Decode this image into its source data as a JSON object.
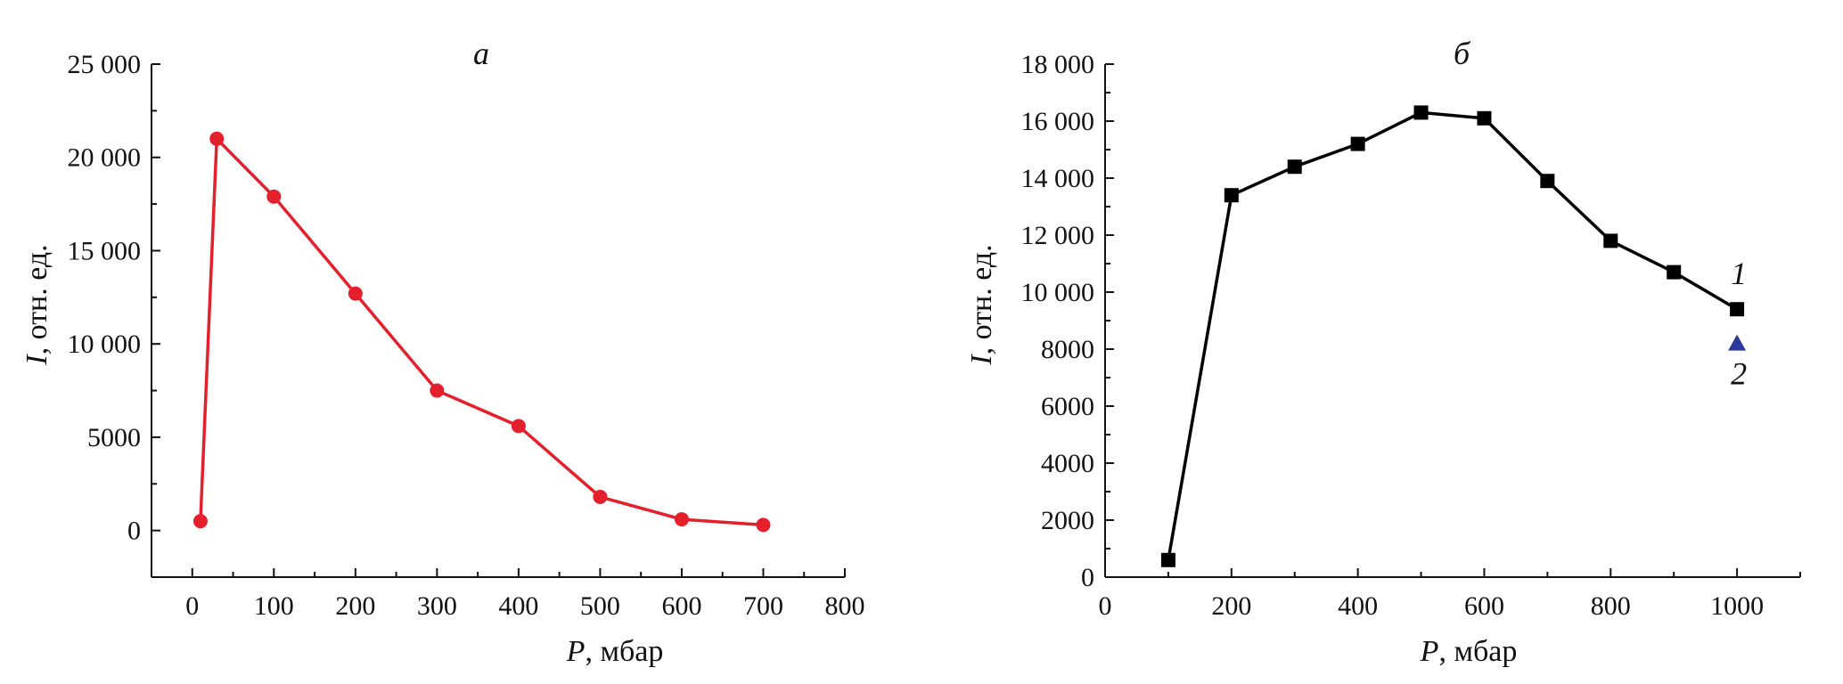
{
  "chart_data": [
    {
      "type": "line",
      "panel_label": "а",
      "xlabel_symbol": "P",
      "xlabel_unit": ", мбар",
      "ylabel_symbol": "I",
      "ylabel_unit": ", отн. ед.",
      "xlim": [
        -50,
        800
      ],
      "ylim": [
        -2500,
        25000
      ],
      "xticks": [
        0,
        100,
        200,
        300,
        400,
        500,
        600,
        700,
        800
      ],
      "xtick_labels": [
        "0",
        "100",
        "200",
        "300",
        "400",
        "500",
        "600",
        "700",
        "800"
      ],
      "yticks": [
        0,
        5000,
        10000,
        15000,
        20000,
        25000
      ],
      "ytick_labels": [
        "0",
        "5000",
        "10 000",
        "15 000",
        "20 000",
        "25 000"
      ],
      "grid": false,
      "series": [
        {
          "color": "#e3202b",
          "marker": "circle",
          "x": [
            10,
            30,
            100,
            200,
            300,
            400,
            500,
            600,
            700
          ],
          "y": [
            500,
            21000,
            17900,
            12700,
            7500,
            5600,
            1800,
            600,
            300
          ]
        }
      ]
    },
    {
      "type": "line",
      "panel_label": "б",
      "xlabel_symbol": "P",
      "xlabel_unit": ", мбар",
      "ylabel_symbol": "I",
      "ylabel_unit": ", отн. ед.",
      "xlim": [
        0,
        1100
      ],
      "ylim": [
        0,
        18000
      ],
      "xticks": [
        0,
        200,
        400,
        600,
        800,
        1000
      ],
      "xtick_labels": [
        "0",
        "200",
        "400",
        "600",
        "800",
        "1000"
      ],
      "yticks": [
        0,
        2000,
        4000,
        6000,
        8000,
        10000,
        12000,
        14000,
        16000,
        18000
      ],
      "ytick_labels": [
        "0",
        "2000",
        "4000",
        "6000",
        "8000",
        "10 000",
        "12 000",
        "14 000",
        "16 000",
        "18 000"
      ],
      "grid": false,
      "series": [
        {
          "name": "1",
          "color": "#000000",
          "marker": "square",
          "x": [
            100,
            200,
            300,
            400,
            500,
            600,
            700,
            800,
            900,
            1000
          ],
          "y": [
            600,
            13400,
            14400,
            15200,
            16300,
            16100,
            13900,
            11800,
            10700,
            9400
          ]
        },
        {
          "name": "2",
          "color": "#2b3a9a",
          "marker": "triangle",
          "x": [
            1000
          ],
          "y": [
            8200
          ]
        }
      ]
    }
  ]
}
